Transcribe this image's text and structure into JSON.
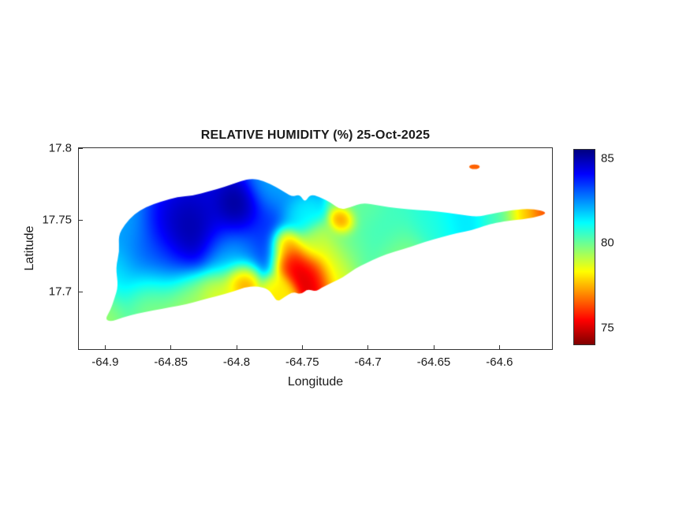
{
  "chart_data": {
    "type": "heatmap",
    "title": "RELATIVE HUMIDITY (%) 25-Oct-2025",
    "xlabel": "Longitude",
    "ylabel": "Latitude",
    "xlim": [
      -64.92,
      -64.56
    ],
    "ylim": [
      17.66,
      17.8
    ],
    "clim": [
      74,
      85.5
    ],
    "xticks": [
      -64.9,
      -64.85,
      -64.8,
      -64.75,
      -64.7,
      -64.65,
      -64.6
    ],
    "xtick_labels": [
      "-64.9",
      "-64.85",
      "-64.8",
      "-64.75",
      "-64.7",
      "-64.65",
      "-64.6"
    ],
    "yticks": [
      17.8,
      17.75,
      17.7
    ],
    "ytick_labels": [
      "17.8",
      "17.75",
      "17.7"
    ],
    "colorbar_ticks": [
      85,
      80,
      75
    ],
    "colorbar_tick_labels": [
      "85",
      "80",
      "75"
    ],
    "colormap": "jet-reversed-high-blue-low-red",
    "grid": false,
    "legend": "colorbar-right",
    "island_outline": [
      [
        -64.9,
        17.681
      ],
      [
        -64.896,
        17.687
      ],
      [
        -64.893,
        17.695
      ],
      [
        -64.89,
        17.704
      ],
      [
        -64.892,
        17.717
      ],
      [
        -64.889,
        17.728
      ],
      [
        -64.89,
        17.739
      ],
      [
        -64.885,
        17.747
      ],
      [
        -64.878,
        17.754
      ],
      [
        -64.869,
        17.759
      ],
      [
        -64.857,
        17.763
      ],
      [
        -64.845,
        17.766
      ],
      [
        -64.833,
        17.767
      ],
      [
        -64.821,
        17.77
      ],
      [
        -64.809,
        17.773
      ],
      [
        -64.797,
        17.777
      ],
      [
        -64.788,
        17.779
      ],
      [
        -64.779,
        17.777
      ],
      [
        -64.77,
        17.773
      ],
      [
        -64.763,
        17.769
      ],
      [
        -64.757,
        17.766
      ],
      [
        -64.752,
        17.768
      ],
      [
        -64.748,
        17.762
      ],
      [
        -64.744,
        17.768
      ],
      [
        -64.737,
        17.766
      ],
      [
        -64.728,
        17.762
      ],
      [
        -64.721,
        17.757
      ],
      [
        -64.713,
        17.759
      ],
      [
        -64.704,
        17.762
      ],
      [
        -64.692,
        17.76
      ],
      [
        -64.677,
        17.758
      ],
      [
        -64.662,
        17.757
      ],
      [
        -64.647,
        17.756
      ],
      [
        -64.632,
        17.754
      ],
      [
        -64.617,
        17.752
      ],
      [
        -64.607,
        17.754
      ],
      [
        -64.59,
        17.757
      ],
      [
        -64.575,
        17.758
      ],
      [
        -64.562,
        17.755
      ],
      [
        -64.575,
        17.751
      ],
      [
        -64.59,
        17.75
      ],
      [
        -64.603,
        17.748
      ],
      [
        -64.611,
        17.746
      ],
      [
        -64.62,
        17.743
      ],
      [
        -64.632,
        17.741
      ],
      [
        -64.644,
        17.738
      ],
      [
        -64.656,
        17.735
      ],
      [
        -64.668,
        17.731
      ],
      [
        -64.68,
        17.728
      ],
      [
        -64.692,
        17.724
      ],
      [
        -64.701,
        17.72
      ],
      [
        -64.71,
        17.716
      ],
      [
        -64.719,
        17.71
      ],
      [
        -64.728,
        17.706
      ],
      [
        -64.735,
        17.703
      ],
      [
        -64.74,
        17.7
      ],
      [
        -64.746,
        17.702
      ],
      [
        -64.751,
        17.698
      ],
      [
        -64.757,
        17.7
      ],
      [
        -64.764,
        17.696
      ],
      [
        -64.769,
        17.693
      ],
      [
        -64.772,
        17.697
      ],
      [
        -64.776,
        17.702
      ],
      [
        -64.785,
        17.704
      ],
      [
        -64.794,
        17.703
      ],
      [
        -64.803,
        17.7
      ],
      [
        -64.815,
        17.697
      ],
      [
        -64.827,
        17.694
      ],
      [
        -64.839,
        17.691
      ],
      [
        -64.851,
        17.689
      ],
      [
        -64.863,
        17.687
      ],
      [
        -64.875,
        17.685
      ],
      [
        -64.887,
        17.682
      ],
      [
        -64.896,
        17.679
      ]
    ],
    "islet": {
      "center": [
        -64.619,
        17.787
      ],
      "rx": 0.004,
      "ry": 0.0016,
      "value": 76.5
    },
    "samples": [
      [
        -64.875,
        17.735,
        82.5,
        0.025
      ],
      [
        -64.839,
        17.741,
        86.0,
        0.013
      ],
      [
        -64.852,
        17.75,
        85.0,
        0.012
      ],
      [
        -64.8,
        17.757,
        86.0,
        0.009
      ],
      [
        -64.82,
        17.748,
        84.5,
        0.015
      ],
      [
        -64.86,
        17.722,
        83.5,
        0.015
      ],
      [
        -64.905,
        17.688,
        79.3,
        0.012
      ],
      [
        -64.895,
        17.715,
        81.0,
        0.012
      ],
      [
        -64.888,
        17.748,
        82.0,
        0.012
      ],
      [
        -64.865,
        17.698,
        79.0,
        0.012
      ],
      [
        -64.838,
        17.694,
        79.2,
        0.012
      ],
      [
        -64.812,
        17.699,
        78.5,
        0.01
      ],
      [
        -64.796,
        17.708,
        76.3,
        0.007
      ],
      [
        -64.806,
        17.726,
        81.5,
        0.012
      ],
      [
        -64.782,
        17.745,
        83.5,
        0.018
      ],
      [
        -64.77,
        17.772,
        82.0,
        0.01
      ],
      [
        -64.762,
        17.735,
        76.0,
        0.006
      ],
      [
        -64.757,
        17.722,
        74.5,
        0.008
      ],
      [
        -64.744,
        17.713,
        74.8,
        0.008
      ],
      [
        -64.753,
        17.752,
        81.0,
        0.008
      ],
      [
        -64.728,
        17.722,
        78.5,
        0.01
      ],
      [
        -64.718,
        17.749,
        75.8,
        0.005
      ],
      [
        -64.705,
        17.758,
        80.0,
        0.01
      ],
      [
        -64.69,
        17.742,
        80.5,
        0.015
      ],
      [
        -64.672,
        17.722,
        79.5,
        0.012
      ],
      [
        -64.65,
        17.744,
        80.8,
        0.012
      ],
      [
        -64.627,
        17.75,
        81.5,
        0.012
      ],
      [
        -64.6,
        17.751,
        80.3,
        0.01
      ],
      [
        -64.582,
        17.753,
        77.5,
        0.008
      ],
      [
        -64.563,
        17.755,
        76.3,
        0.008
      ],
      [
        -64.714,
        17.733,
        80.0,
        0.01
      ],
      [
        -64.743,
        17.733,
        79.0,
        0.008
      ],
      [
        -64.769,
        17.7,
        78.0,
        0.007
      ],
      [
        -64.619,
        17.787,
        76.5,
        0.004
      ]
    ]
  },
  "colors": {
    "background": "#ffffff",
    "axis": "#333333",
    "text": "#1a1a1a"
  }
}
